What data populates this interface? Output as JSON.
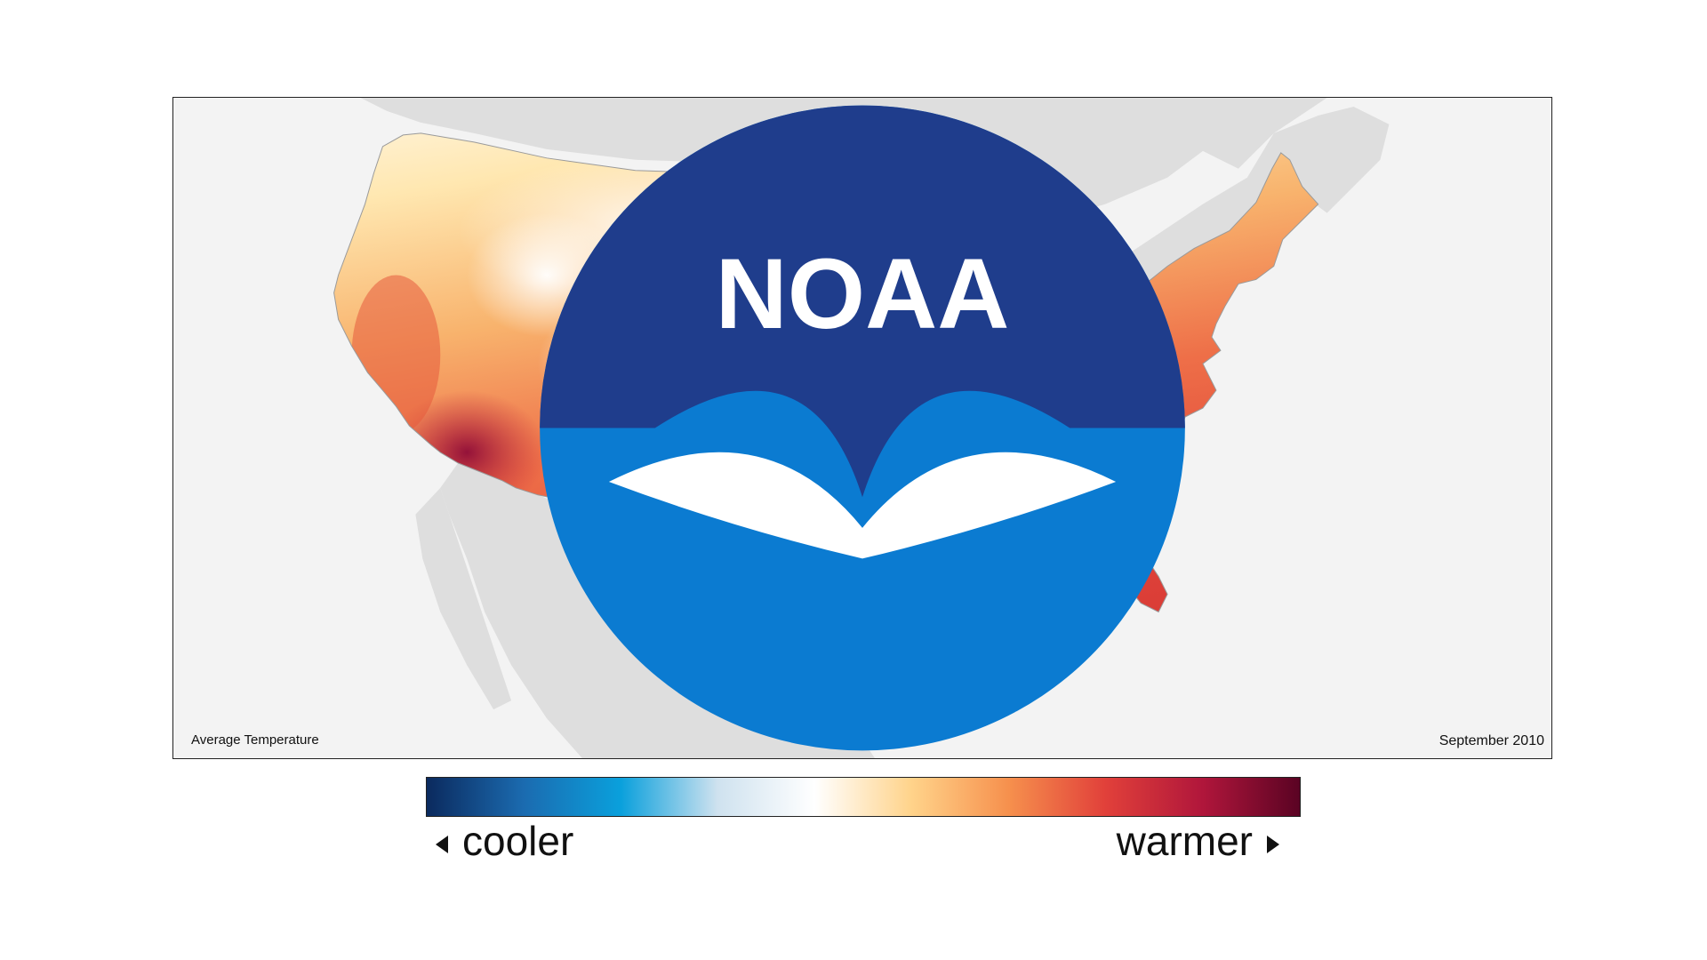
{
  "map": {
    "title": "Average Temperature",
    "date": "September 2010"
  },
  "legend": {
    "low_label": "cooler",
    "high_label": "warmer",
    "colors": [
      "#0b2a5e",
      "#1b6bb0",
      "#0aa0dc",
      "#cfe2ef",
      "#ffffff",
      "#ffd38a",
      "#f6904d",
      "#e1403a",
      "#b0163b",
      "#5a0323"
    ]
  },
  "logo": {
    "text": "NOAA",
    "icon": "noaa-logo-icon",
    "colors": {
      "top": "#1f3d8c",
      "bottom": "#0b7bd1"
    }
  },
  "colors": {
    "land_outside": "#dedede",
    "water": "#f3f3f3",
    "cool_area": "#fff4d6",
    "mid_area": "#f4a35f",
    "warm_area": "#e2473c",
    "hot_area": "#a5123c"
  }
}
